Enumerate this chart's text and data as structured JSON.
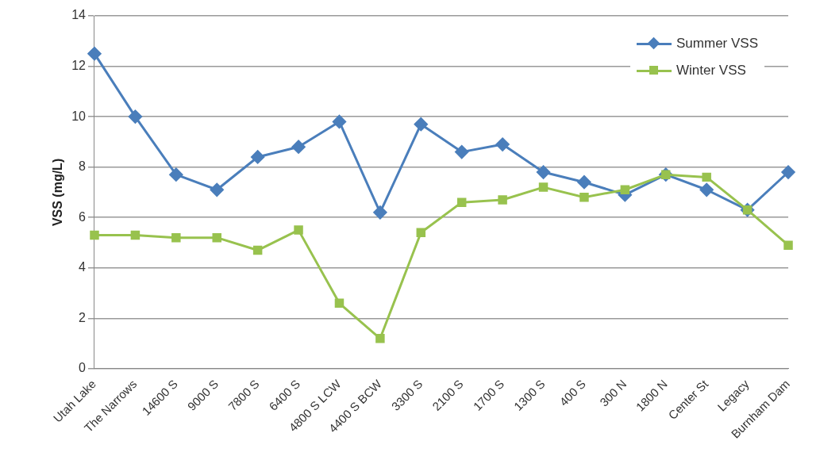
{
  "chart_data": {
    "type": "line",
    "ylabel": "VSS (mg/L)",
    "categories": [
      "Utah Lake",
      "The Narrows",
      "14600 S",
      "9000 S",
      "7800 S",
      "6400 S",
      "4800 S LCW",
      "4400 S BCW",
      "3300 S",
      "2100 S",
      "1700 S",
      "1300 S",
      "400 S",
      "300 N",
      "1800 N",
      "Center St",
      "Legacy",
      "Burnham Dam"
    ],
    "series": [
      {
        "name": "Summer VSS",
        "color": "#4a7ebb",
        "marker": "diamond",
        "values": [
          12.5,
          10.0,
          7.7,
          7.1,
          8.4,
          8.8,
          9.8,
          6.2,
          9.7,
          8.6,
          8.9,
          7.8,
          7.4,
          6.9,
          7.7,
          7.1,
          6.3,
          7.8
        ]
      },
      {
        "name": "Winter VSS",
        "color": "#98c24e",
        "marker": "square",
        "values": [
          5.3,
          5.3,
          5.2,
          5.2,
          4.7,
          5.5,
          2.6,
          1.2,
          5.4,
          6.6,
          6.7,
          7.2,
          6.8,
          7.1,
          7.7,
          7.6,
          6.3,
          4.9
        ]
      }
    ],
    "ylim": [
      0,
      14
    ],
    "yticks": [
      0,
      2,
      4,
      6,
      8,
      10,
      12,
      14
    ],
    "grid": "y",
    "legend": "top right",
    "line_style": "solid"
  }
}
